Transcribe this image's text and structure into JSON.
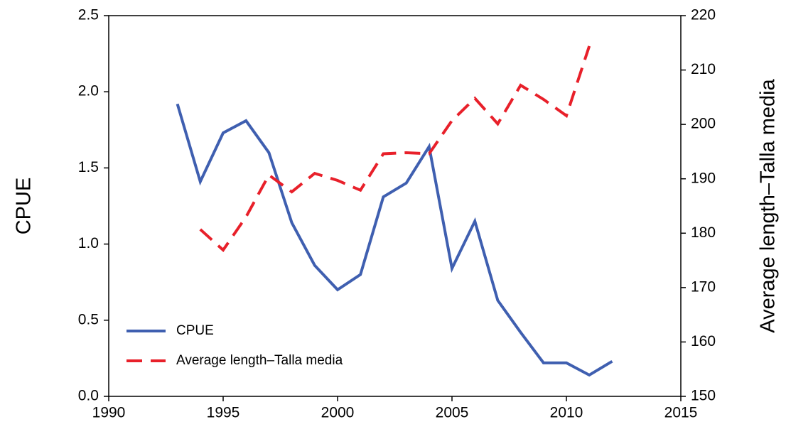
{
  "chart_data": {
    "type": "line",
    "x": [
      1993,
      1994,
      1995,
      1996,
      1997,
      1998,
      1999,
      2000,
      2001,
      2002,
      2003,
      2004,
      2005,
      2006,
      2007,
      2008,
      2009,
      2010,
      2011,
      2012
    ],
    "series": [
      {
        "name": "CPUE",
        "color": "#3f5fb0",
        "style": "solid",
        "values": [
          1.92,
          1.41,
          1.73,
          1.81,
          1.6,
          1.14,
          0.86,
          0.7,
          0.8,
          1.31,
          1.4,
          1.64,
          0.84,
          1.15,
          0.63,
          0.42,
          0.22,
          0.22,
          0.14,
          0.23
        ]
      },
      {
        "name": "Average length–Talla media",
        "color": "#e8202a",
        "style": "dashed",
        "axis": "y2",
        "values": [
          null,
          180.7,
          176.9,
          183.0,
          190.7,
          187.6,
          191.0,
          189.7,
          187.9,
          194.6,
          194.8,
          194.6,
          200.7,
          204.8,
          200.1,
          207.2,
          204.6,
          201.6,
          214.4,
          null
        ]
      }
    ],
    "y_label": "CPUE",
    "y2_label": "Average length–Talla media",
    "xlim": [
      1990,
      2015
    ],
    "xticks": [
      1990,
      1995,
      2000,
      2005,
      2010,
      2015
    ],
    "ylim": [
      0,
      2.5
    ],
    "yticks": [
      {
        "value": 0,
        "label": "0.0"
      },
      0.5,
      {
        "value": 1,
        "label": "1.0"
      },
      1.5,
      {
        "value": 2,
        "label": "2.0"
      },
      2.5
    ],
    "y2lim": [
      150,
      220
    ],
    "y2ticks": [
      150,
      160,
      170,
      180,
      190,
      200,
      210,
      220
    ],
    "legend": "lower-left",
    "grid": false
  }
}
